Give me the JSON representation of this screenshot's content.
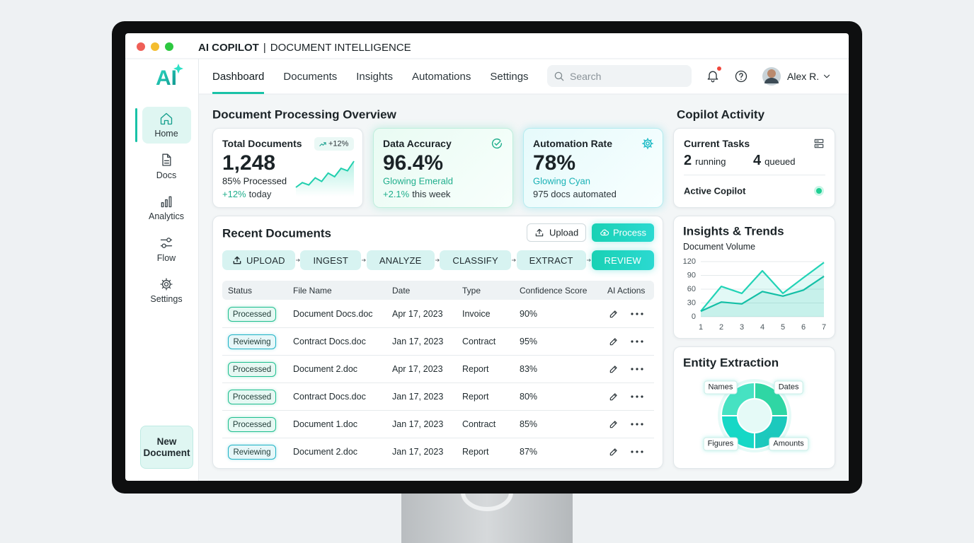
{
  "window": {
    "brand": "AI COPILOT",
    "separator": "|",
    "title": "DOCUMENT INTELLIGENCE"
  },
  "logo": "AI",
  "nav": {
    "tabs": [
      "Dashboard",
      "Documents",
      "Insights",
      "Automations",
      "Settings"
    ],
    "active_tab": 0,
    "search": "Search",
    "user": "Alex R."
  },
  "sidebar": {
    "items": [
      "Home",
      "Docs",
      "Analytics",
      "Flow",
      "Settings"
    ],
    "active_item": 0,
    "new_button": "New Document"
  },
  "overview": {
    "title": "Document Processing Overview",
    "cards": [
      {
        "title": "Total Documents",
        "badge": "+12%",
        "value": "1,248",
        "line1": "85% Processed",
        "delta": "+12%",
        "line2": "today",
        "sparkline": [
          8,
          12,
          10,
          16,
          13,
          20,
          17,
          24,
          22,
          30
        ]
      },
      {
        "title": "Data Accuracy",
        "value": "96.4%",
        "line1": "Glowing Emerald",
        "delta": "+2.1%",
        "line2": "this week"
      },
      {
        "title": "Automation Rate",
        "value": "78%",
        "line1": "Glowing Cyan",
        "line2": "975 docs automated"
      }
    ]
  },
  "recent": {
    "title": "Recent Documents",
    "upload_button": "Upload",
    "process_button": "Process",
    "pipeline": [
      "UPLOAD",
      "INGEST",
      "ANALYZE",
      "CLASSIFY",
      "EXTRACT",
      "REVIEW"
    ],
    "pipeline_active": 5,
    "columns": [
      "Status",
      "File Name",
      "Date",
      "Type",
      "Confidence Score",
      "AI Actions"
    ],
    "rows": [
      {
        "status": "Processed",
        "status_color": "#1fbf8f",
        "file": "Document Docs.doc",
        "date": "Apr 17, 2023",
        "type": "Invoice",
        "confidence": "90%"
      },
      {
        "status": "Reviewing",
        "status_color": "#1fb3c6",
        "file": "Contract Docs.doc",
        "date": "Jan 17, 2023",
        "type": "Contract",
        "confidence": "95%"
      },
      {
        "status": "Processed",
        "status_color": "#1fbf8f",
        "file": "Document 2.doc",
        "date": "Apr 17, 2023",
        "type": "Report",
        "confidence": "83%"
      },
      {
        "status": "Processed",
        "status_color": "#1fbf8f",
        "file": "Contract Docs.doc",
        "date": "Jan 17, 2023",
        "type": "Report",
        "confidence": "80%"
      },
      {
        "status": "Processed",
        "status_color": "#1fbf8f",
        "file": "Document 1.doc",
        "date": "Jan 17, 2023",
        "type": "Contract",
        "confidence": "85%"
      },
      {
        "status": "Reviewing",
        "status_color": "#1fb3c6",
        "file": "Document 2.doc",
        "date": "Jan 17, 2023",
        "type": "Report",
        "confidence": "87%"
      }
    ]
  },
  "copilot": {
    "title": "Copilot Activity",
    "tasks_title": "Current Tasks",
    "running_count": 2,
    "running_label": "running",
    "queued_count": 4,
    "queued_label": "queued",
    "active_label": "Active Copilot"
  },
  "insights": {
    "title": "Insights & Trends",
    "subtitle": "Document Volume",
    "chart": {
      "type": "line",
      "x": [
        1,
        2,
        3,
        4,
        5,
        6,
        7
      ],
      "xlim": [
        1,
        7
      ],
      "xticks": [
        1,
        2,
        3,
        4,
        5,
        6,
        7
      ],
      "ylim": [
        0,
        120
      ],
      "yticks": [
        0,
        30,
        60,
        90,
        120
      ],
      "grid": true,
      "series": [
        {
          "color": "#22d3b6",
          "values": [
            12,
            66,
            51,
            100,
            51,
            85,
            118
          ]
        },
        {
          "color": "#14bfa6",
          "values": [
            12,
            32,
            28,
            55,
            45,
            58,
            88
          ]
        }
      ]
    }
  },
  "entities": {
    "title": "Entity Extraction",
    "chart": {
      "type": "pie",
      "categories": [
        "Dates",
        "Amounts",
        "Figures",
        "Names"
      ],
      "values": [
        25,
        25,
        25,
        25
      ],
      "colors": [
        "#2fd6a4",
        "#1cc9bd",
        "#16d8c6",
        "#46e2c2"
      ]
    }
  }
}
